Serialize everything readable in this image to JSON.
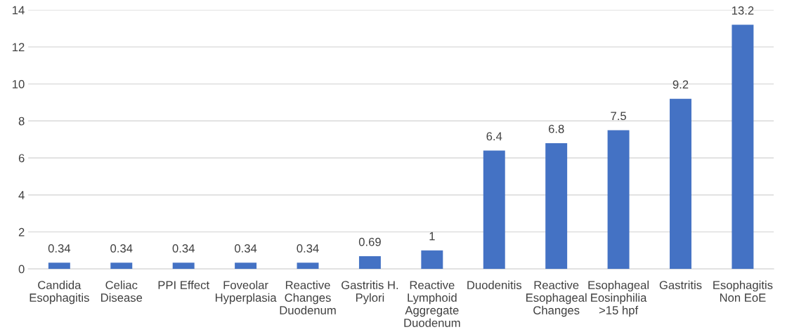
{
  "chart_data": {
    "type": "bar",
    "categories": [
      "Candida\nEsophagitis",
      "Celiac\nDisease",
      "PPI Effect",
      "Foveolar\nHyperplasia",
      "Reactive\nChanges\nDuodenum",
      "Gastritis H.\nPylori",
      "Reactive\nLymphoid\nAggregate\nDuodenum",
      "Duodenitis",
      "Reactive\nEsophageal\nChanges",
      "Esophageal\nEosinphilia\n>15 hpf",
      "Gastritis",
      "Esophagitis\nNon EoE"
    ],
    "values": [
      0.34,
      0.34,
      0.34,
      0.34,
      0.34,
      0.69,
      1,
      6.4,
      6.8,
      7.5,
      9.2,
      13.2
    ],
    "color": "#4472c4",
    "ylim": [
      0,
      14
    ],
    "yticks": [
      0,
      2,
      4,
      6,
      8,
      10,
      12,
      14
    ],
    "grid": "y",
    "data_labels": true
  }
}
